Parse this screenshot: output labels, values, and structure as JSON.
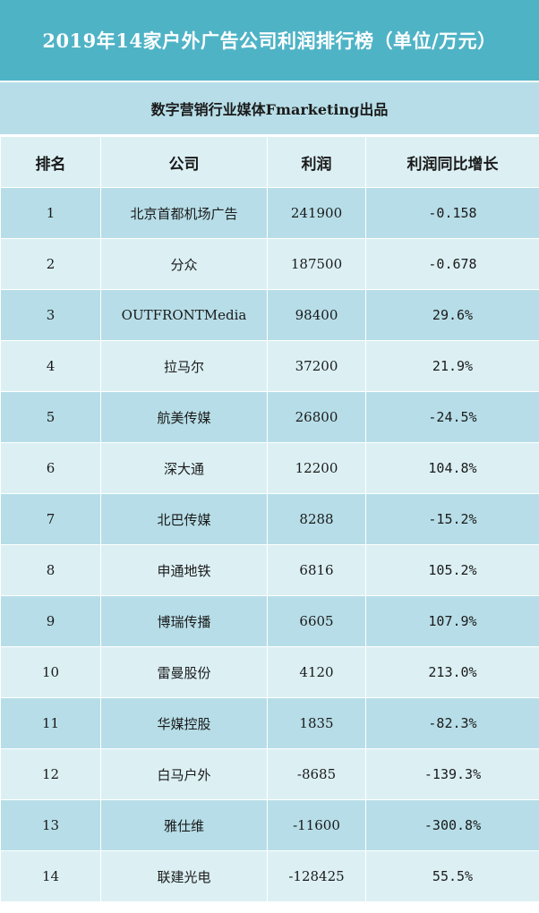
{
  "title": "2019年14家户外广告公司利润排行榜（单位/万元）",
  "subtitle": "数字营销行业媒体Fmarketing出品",
  "headers": {
    "rank": "排名",
    "company": "公司",
    "profit": "利润",
    "yoy": "利润同比增长"
  },
  "rows": [
    {
      "rank": "1",
      "company": "北京首都机场广告",
      "profit": "241900",
      "yoy": "-0.158"
    },
    {
      "rank": "2",
      "company": "分众",
      "profit": "187500",
      "yoy": "-0.678"
    },
    {
      "rank": "3",
      "company": "OUTFRONTMedia",
      "profit": "98400",
      "yoy": "29.6%"
    },
    {
      "rank": "4",
      "company": "拉马尔",
      "profit": "37200",
      "yoy": "21.9%"
    },
    {
      "rank": "5",
      "company": "航美传媒",
      "profit": "26800",
      "yoy": "-24.5%"
    },
    {
      "rank": "6",
      "company": "深大通",
      "profit": "12200",
      "yoy": "104.8%"
    },
    {
      "rank": "7",
      "company": "北巴传媒",
      "profit": "8288",
      "yoy": "-15.2%"
    },
    {
      "rank": "8",
      "company": "申通地铁",
      "profit": "6816",
      "yoy": "105.2%"
    },
    {
      "rank": "9",
      "company": "博瑞传播",
      "profit": "6605",
      "yoy": "107.9%"
    },
    {
      "rank": "10",
      "company": "雷曼股份",
      "profit": "4120",
      "yoy": "213.0%"
    },
    {
      "rank": "11",
      "company": "华媒控股",
      "profit": "1835",
      "yoy": "-82.3%"
    },
    {
      "rank": "12",
      "company": "白马户外",
      "profit": "-8685",
      "yoy": "-139.3%"
    },
    {
      "rank": "13",
      "company": "雅仕维",
      "profit": "-11600",
      "yoy": "-300.8%"
    },
    {
      "rank": "14",
      "company": "联建光电",
      "profit": "-128425",
      "yoy": "55.5%"
    }
  ],
  "colors": {
    "title_bg": "#4fb3c6",
    "row_dark": "#b7dee8",
    "row_light": "#dcf0f4"
  }
}
